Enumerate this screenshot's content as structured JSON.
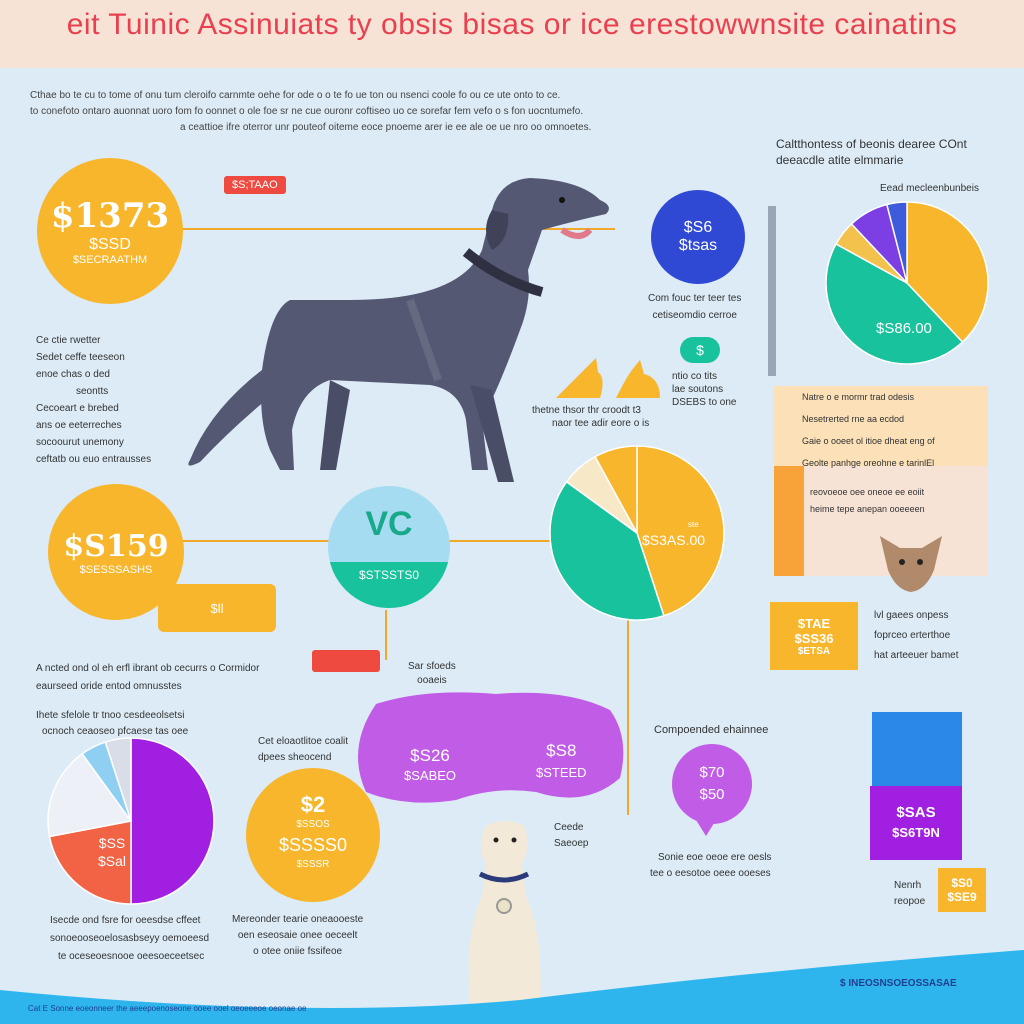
{
  "header": {
    "title": "eit Tuinic Assinuiats  ty obsis bisas or ice erestowwnsite cainatins",
    "intro_lines": [
      "Cthae bo te cu to tome of onu tum cleroifo carnmte oehe for ode o o te fo ue ton ou nsenci coole fo ou ce ute onto to ce.",
      "to conefoto ontaro auonnat uoro fom fo oonnet o ole foe sr ne cue ouronr coftiseo uo ce sorefar fem vefo o s fon uocntumefo.",
      "a ceattioe ifre oterror unr pouteof oiteme eoce pnoeme arer ie ee ale oe ue nro oo omnoetes."
    ]
  },
  "left_top": {
    "big_value": "$1373",
    "sub1": "$SSD",
    "sub2": "$SECRAATHM",
    "tag": "$S;TAAO",
    "notes": [
      "Ce ctie rwetter",
      "Sedet ceffe teeseon",
      "enoe chas o ded",
      "seontts",
      "Cecoeart e brebed",
      "ans oe eeterreches",
      "socoourut unemony",
      "ceftatb ou euo entrausses"
    ]
  },
  "left_mid": {
    "big_value": "$S159",
    "sub": "$SESSSASHS",
    "tag_text": "$ll"
  },
  "center_mid": {
    "icon_text": "VC",
    "value": "$STSSTS0"
  },
  "dog_main": {
    "caption1": "Com fouc ter teer tes",
    "caption2": "cetiseomdio cerroe"
  },
  "top_right_circle": {
    "value1": "$S6",
    "value2": "$tsas"
  },
  "small_badge": "$",
  "cats_caption": {
    "left1": "thetne thsor thr croodt t3",
    "left2": "naor tee adir eore o is",
    "right1": "ntio co tits",
    "right2": "lae soutons",
    "right3": "DSEBS to one"
  },
  "right_pie": {
    "title1": "Caltthontess  of beonis dearee COnt",
    "title2": "deeacdle atite elmmarie",
    "legend": "Eead mecleenbunbeis",
    "value": "$S86.00",
    "slices": [
      {
        "label": "gold",
        "value": 38,
        "color": "#f8b62c"
      },
      {
        "label": "teal",
        "value": 45,
        "color": "#18c29c"
      },
      {
        "label": "yellow",
        "value": 5,
        "color": "#f3c24d"
      },
      {
        "label": "purple",
        "value": 8,
        "color": "#7b3fe4"
      },
      {
        "label": "blue",
        "value": 4,
        "color": "#3d5bdb"
      }
    ]
  },
  "right_panel": {
    "lines": [
      "Natre o e mormr trad odesis",
      "Nesetrerted rne aa ecdod",
      "Gaie o ooeet ol itioe dheat eng of",
      "Geolte panhge oreohne e tarinlEl",
      "reovoeoe oee oneoe ee eoiit",
      "heime tepe anepan ooeeeen"
    ]
  },
  "center_pie": {
    "value": "$S3AS.00",
    "small_tag": "ste",
    "slices": [
      {
        "label": "gold",
        "value": 45,
        "color": "#f8b62c"
      },
      {
        "label": "teal",
        "value": 40,
        "color": "#18c29c"
      },
      {
        "label": "cream",
        "value": 7,
        "color": "#f7e9c8"
      },
      {
        "label": "gold2",
        "value": 8,
        "color": "#f8b62c"
      }
    ]
  },
  "price_box_orange": {
    "v1": "$TAE",
    "v2": "$SS36",
    "v3": "$ETSA"
  },
  "price_box_notes": [
    "lvl gaees onpess",
    "foprceo erterthoe",
    "hat arteeuer bamet"
  ],
  "mid_notes": {
    "line1": "A ncted ond ol eh erfl ibrant ob cecurrs o Cormidor",
    "line2": "eaurseed oride entod omnusstes",
    "center_label1": "Sar sfoeds",
    "center_label2": "ooaeis"
  },
  "purple_shape": {
    "v1": "$S26",
    "v1b": "$SABEO",
    "v2": "$S8",
    "v2b": "$STEED"
  },
  "bottom_left_pie": {
    "title1": "Ihete sfelole tr tnoo cesdeeolsetsi",
    "title2": "ocnoch ceaoseo pfcaese tas oee",
    "value": "$SS",
    "value2": "$Sal",
    "caption1": "Isecde ond fsre for oeesdse cffeet",
    "caption2": "sonoeooseoelosasbseyy oemoeesd",
    "caption3": "te oceseoesnooe oeesoeceetsec",
    "slices": [
      {
        "label": "purple",
        "value": 50,
        "color": "#a11fe0"
      },
      {
        "label": "red",
        "value": 22,
        "color": "#f26244"
      },
      {
        "label": "white",
        "value": 18,
        "color": "#eef0f7"
      },
      {
        "label": "lightblue",
        "value": 5,
        "color": "#8fd0f2"
      },
      {
        "label": "grey",
        "value": 5,
        "color": "#d9dde8"
      }
    ]
  },
  "bottom_center_circle": {
    "top_text1": "Cet eloaotlitoe coalit",
    "top_text2": "dpees sheocend",
    "v1": "$2",
    "v2": "$SSOS",
    "v3": "$SSSS0",
    "v4": "$SSSR",
    "caption1": "Mereonder tearie oneaooeste",
    "caption2": "oen eseosaie onee oeceelt",
    "caption3": "o otee oniie fssifeoe"
  },
  "dog_small": {
    "label1": "Ceede",
    "label2": "Saeoep"
  },
  "bottom_right": {
    "title": "Compoended ehainnee",
    "v1": "$70",
    "v2": "$50",
    "caption1": "Sonie eoe oeoe ere oesls",
    "caption2": "tee o eesotoe oeee ooeses",
    "purple_v1": "$SAS",
    "purple_v2": "$S6T9N",
    "gold_v1": "$S0",
    "gold_v2": "$SE9",
    "gold_label1": "Nenrh",
    "gold_label2": "reopoe",
    "footer_right": "$ INEOSNSOEOSSASAE",
    "footer_left": "Cat E Sonne eoeonneer the aeeepoenoseone ooee ooel oeoeeeoe oeonae oe"
  }
}
